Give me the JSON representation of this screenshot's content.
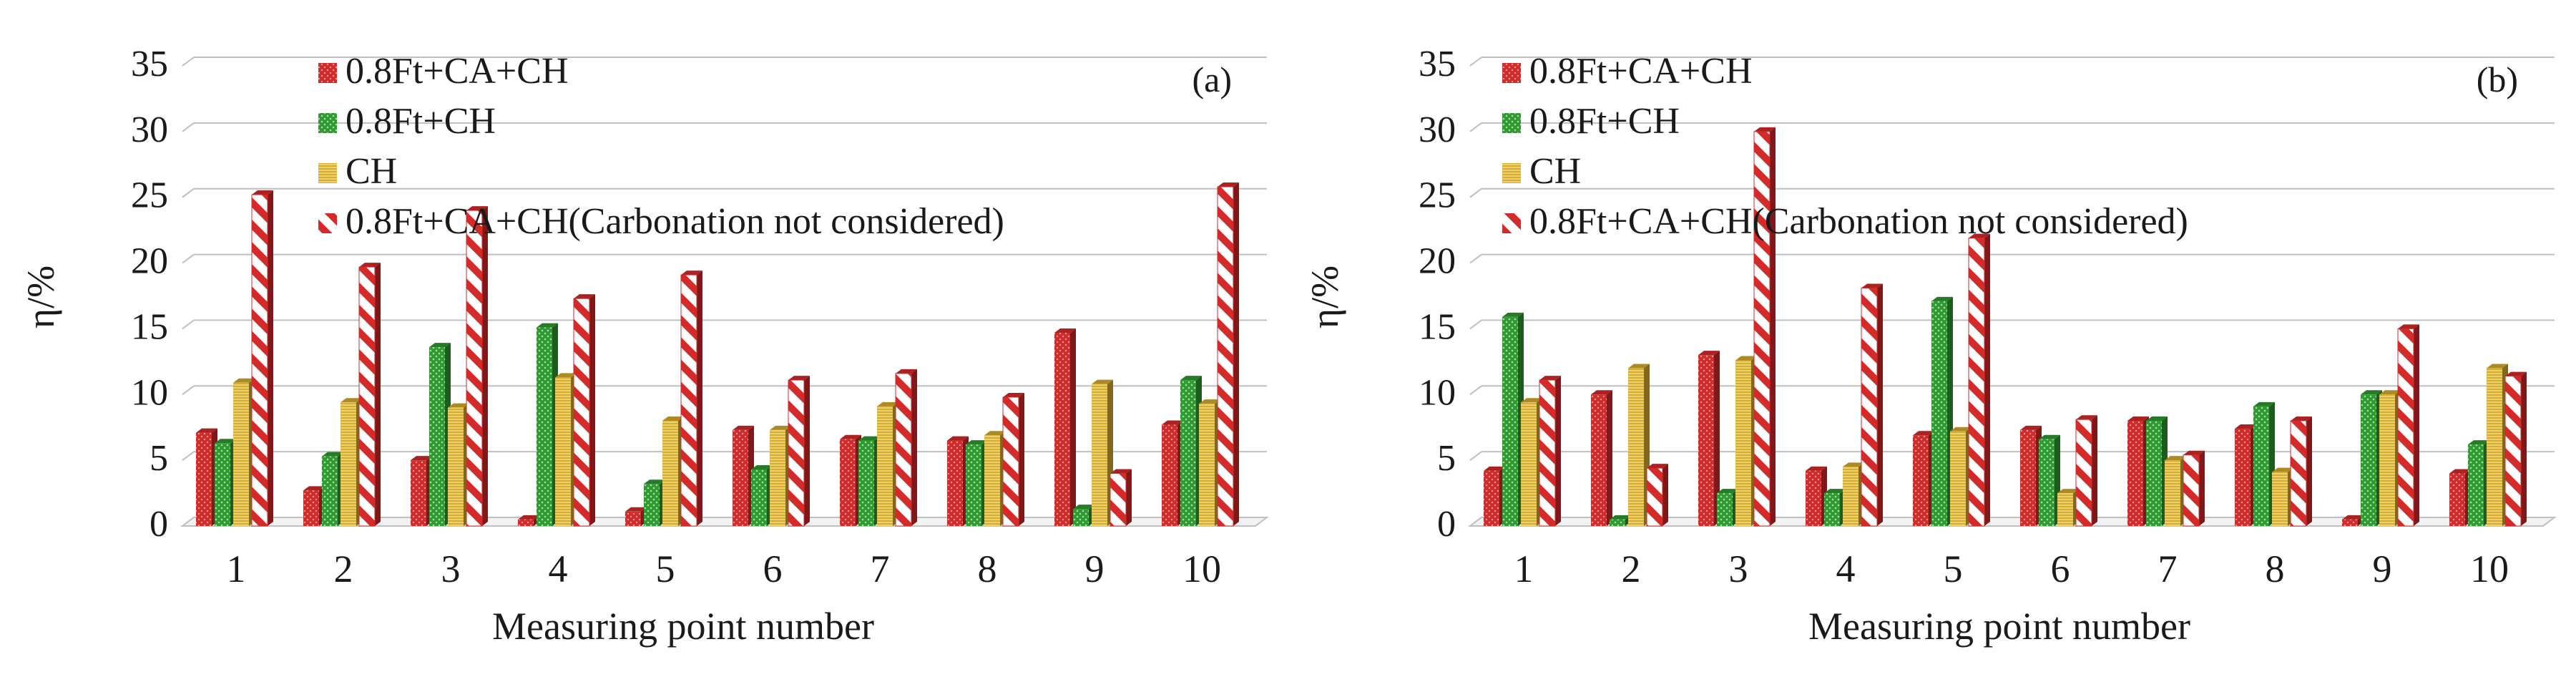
{
  "colors": {
    "red": "#d42a2a",
    "green": "#2f9a2f",
    "yellow": "#d9ad2c",
    "hatch": "#d42a2a",
    "grid": "#bfbfbf"
  },
  "chart_data": [
    {
      "type": "bar",
      "panel_label": "(a)",
      "xlabel": "Measuring point number",
      "ylabel": "η/%",
      "ylim": [
        0,
        35
      ],
      "yticks": [
        "0",
        "5",
        "10",
        "15",
        "20",
        "25",
        "30",
        "35"
      ],
      "categories": [
        "1",
        "2",
        "3",
        "4",
        "5",
        "6",
        "7",
        "8",
        "9",
        "10"
      ],
      "legend_position": "top-left",
      "series": [
        {
          "name": "0.8Ft+CA+CH",
          "style": "red",
          "values": [
            7.1,
            2.7,
            5.0,
            0.5,
            1.1,
            7.3,
            6.6,
            6.5,
            14.7,
            7.7
          ]
        },
        {
          "name": "0.8Ft+CH",
          "style": "green",
          "values": [
            6.3,
            5.3,
            13.6,
            15.1,
            3.2,
            4.3,
            6.5,
            6.2,
            1.3,
            11.1
          ]
        },
        {
          "name": "CH",
          "style": "yellow",
          "values": [
            10.9,
            9.4,
            9.0,
            11.3,
            8.0,
            7.3,
            9.1,
            6.9,
            10.8,
            9.3
          ]
        },
        {
          "name": "0.8Ft+CA+CH(Carbonation not considered)",
          "style": "hatch",
          "values": [
            25.2,
            19.7,
            24.0,
            17.3,
            19.1,
            11.1,
            11.6,
            9.8,
            4.0,
            25.8
          ]
        }
      ]
    },
    {
      "type": "bar",
      "panel_label": "(b)",
      "xlabel": "Measuring point number",
      "ylabel": "η/%",
      "ylim": [
        0,
        35
      ],
      "yticks": [
        "0",
        "5",
        "10",
        "15",
        "20",
        "25",
        "30",
        "35"
      ],
      "categories": [
        "1",
        "2",
        "3",
        "4",
        "5",
        "6",
        "7",
        "8",
        "9",
        "10"
      ],
      "legend_position": "top-left",
      "series": [
        {
          "name": "0.8Ft+CA+CH",
          "style": "red",
          "values": [
            4.2,
            10.0,
            13.0,
            4.2,
            6.9,
            7.3,
            8.0,
            7.4,
            0.5,
            4.0
          ]
        },
        {
          "name": "0.8Ft+CH",
          "style": "green",
          "values": [
            15.9,
            0.5,
            2.5,
            2.5,
            17.1,
            6.6,
            8.0,
            9.1,
            10.0,
            6.2
          ]
        },
        {
          "name": "CH",
          "style": "yellow",
          "values": [
            9.4,
            12.0,
            12.6,
            4.5,
            7.2,
            2.5,
            5.0,
            4.1,
            10.0,
            12.0
          ]
        },
        {
          "name": "0.8Ft+CA+CH(Carbonation not considered)",
          "style": "hatch",
          "values": [
            11.1,
            4.4,
            30.0,
            18.1,
            21.9,
            8.1,
            5.4,
            8.0,
            15.0,
            11.4
          ]
        }
      ]
    }
  ]
}
